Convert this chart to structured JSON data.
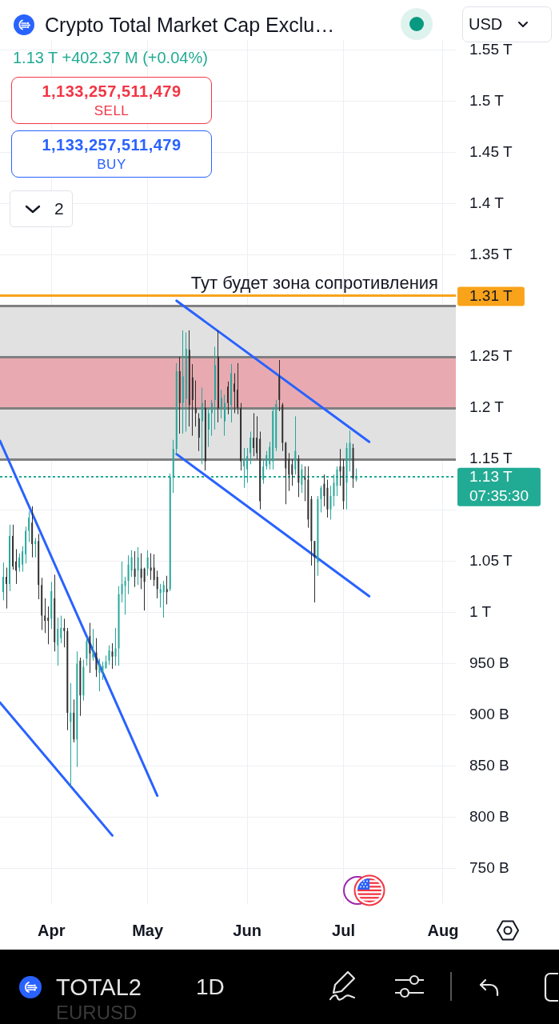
{
  "chart_data": {
    "type": "candlestick",
    "title": "Crypto Total Market Cap Exclu…",
    "subtitle": "1.13 T +402.37 M (+0.04%)",
    "x": [
      "--03-17",
      "--03-18",
      "--03-19",
      "--03-20",
      "--03-21",
      "--03-22",
      "--03-23",
      "--03-24",
      "--03-25",
      "--03-26",
      "--03-27",
      "--03-28",
      "--03-29",
      "--03-30",
      "--03-31",
      "--04-01",
      "--04-02",
      "--04-03",
      "--04-04",
      "--04-05",
      "--04-06",
      "--04-07",
      "--04-08",
      "--04-09",
      "--04-10",
      "--04-11",
      "--04-12",
      "--04-13",
      "--04-14",
      "--04-15",
      "--04-16",
      "--04-17",
      "--04-18",
      "--04-19",
      "--04-20",
      "--04-21",
      "--04-22",
      "--04-23",
      "--04-24",
      "--04-25",
      "--04-26",
      "--04-27",
      "--04-28",
      "--04-29",
      "--04-30",
      "--05-01",
      "--05-02",
      "--05-03",
      "--05-04",
      "--05-05",
      "--05-06",
      "--05-07",
      "--05-08",
      "--05-09",
      "--05-10",
      "--05-11",
      "--05-12",
      "--05-13",
      "--05-14",
      "--05-15",
      "--05-16",
      "--05-17",
      "--05-18",
      "--05-19",
      "--05-20",
      "--05-21",
      "--05-22",
      "--05-23",
      "--05-24",
      "--05-25",
      "--05-26",
      "--05-27",
      "--05-28",
      "--05-29",
      "--05-30",
      "--05-31",
      "--06-01",
      "--06-02",
      "--06-03",
      "--06-04",
      "--06-05",
      "--06-06",
      "--06-07",
      "--06-08",
      "--06-09",
      "--06-10",
      "--06-11",
      "--06-12",
      "--06-13",
      "--06-14",
      "--06-15",
      "--06-16",
      "--06-17",
      "--06-18",
      "--06-19",
      "--06-20",
      "--06-21",
      "--06-22",
      "--06-23",
      "--06-24",
      "--06-25",
      "--06-26",
      "--06-27",
      "--06-28",
      "--06-29",
      "--06-30",
      "--07-01",
      "--07-02",
      "--07-03",
      "--07-04",
      "--07-05"
    ],
    "ohlc": [
      [
        1020000000000.0,
        1049000000000.0,
        1012000000000.0,
        1035000000000.0
      ],
      [
        1035000000000.0,
        1044000000000.0,
        1004000000000.0,
        1028000000000.0
      ],
      [
        1028000000000.0,
        1086000000000.0,
        1021000000000.0,
        1075000000000.0
      ],
      [
        1075000000000.0,
        1086000000000.0,
        1042000000000.0,
        1045000000000.0
      ],
      [
        1050000000000.0,
        1062000000000.0,
        1028000000000.0,
        1041000000000.0
      ],
      [
        1044000000000.0,
        1058000000000.0,
        1040000000000.0,
        1054000000000.0
      ],
      [
        1047000000000.0,
        1065000000000.0,
        1040000000000.0,
        1060000000000.0
      ],
      [
        1057000000000.0,
        1084000000000.0,
        1048000000000.0,
        1080000000000.0
      ],
      [
        1080000000000.0,
        1099000000000.0,
        1069000000000.0,
        1093000000000.0
      ],
      [
        1088000000000.0,
        1104000000000.0,
        1054000000000.0,
        1067000000000.0
      ],
      [
        1067000000000.0,
        1073000000000.0,
        1054000000000.0,
        1070000000000.0
      ],
      [
        1070000000000.0,
        1077000000000.0,
        1013000000000.0,
        1027000000000.0
      ],
      [
        1027000000000.0,
        1034000000000.0,
        983000000000.0,
        997000000000.0
      ],
      [
        997000000000.0,
        1014000000000.0,
        980000000000.0,
        992000000000.0
      ],
      [
        995000000000.0,
        1006000000000.0,
        969000000000.0,
        992000000000.0
      ],
      [
        994000000000.0,
        1030000000000.0,
        984000000000.0,
        1021000000000.0
      ],
      [
        1014000000000.0,
        1037000000000.0,
        962000000000.0,
        971000000000.0
      ],
      [
        968000000000.0,
        995000000000.0,
        948000000000.0,
        984000000000.0
      ],
      [
        975000000000.0,
        997000000000.0,
        970000000000.0,
        985000000000.0
      ],
      [
        985000000000.0,
        994000000000.0,
        966000000000.0,
        982000000000.0
      ],
      [
        982000000000.0,
        985000000000.0,
        885000000000.0,
        902000000000.0
      ],
      [
        893000000000.0,
        931000000000.0,
        830000000000.0,
        902000000000.0
      ],
      [
        902000000000.0,
        915000000000.0,
        873000000000.0,
        876000000000.0
      ],
      [
        876000000000.0,
        962000000000.0,
        849000000000.0,
        950000000000.0
      ],
      [
        953000000000.0,
        956000000000.0,
        899000000000.0,
        919000000000.0
      ],
      [
        919000000000.0,
        954000000000.0,
        914000000000.0,
        947000000000.0
      ],
      [
        955000000000.0,
        976000000000.0,
        948000000000.0,
        972000000000.0
      ],
      [
        977000000000.0,
        990000000000.0,
        941000000000.0,
        960000000000.0
      ],
      [
        956000000000.0,
        984000000000.0,
        953000000000.0,
        961000000000.0
      ],
      [
        961000000000.0,
        975000000000.0,
        937000000000.0,
        944000000000.0
      ],
      [
        941000000000.0,
        955000000000.0,
        923000000000.0,
        950000000000.0
      ],
      [
        943000000000.0,
        952000000000.0,
        934000000000.0,
        948000000000.0
      ],
      [
        946000000000.0,
        958000000000.0,
        945000000000.0,
        952000000000.0
      ],
      [
        953000000000.0,
        968000000000.0,
        949000000000.0,
        963000000000.0
      ],
      [
        962000000000.0,
        970000000000.0,
        945000000000.0,
        957000000000.0
      ],
      [
        957000000000.0,
        985000000000.0,
        948000000000.0,
        965000000000.0
      ],
      [
        965000000000.0,
        1026000000000.0,
        948000000000.0,
        1018000000000.0
      ],
      [
        1018000000000.0,
        1050000000000.0,
        1010000000000.0,
        1028000000000.0
      ],
      [
        1026000000000.0,
        1035000000000.0,
        998000000000.0,
        1031000000000.0
      ],
      [
        1031000000000.0,
        1056000000000.0,
        1018000000000.0,
        1047000000000.0
      ],
      [
        1041000000000.0,
        1061000000000.0,
        1035000000000.0,
        1054000000000.0
      ],
      [
        1043000000000.0,
        1060000000000.0,
        1025000000000.0,
        1035000000000.0
      ],
      [
        1041000000000.0,
        1064000000000.0,
        1027000000000.0,
        1054000000000.0
      ],
      [
        1043000000000.0,
        1058000000000.0,
        1023000000000.0,
        1034000000000.0
      ],
      [
        1043000000000.0,
        1044000000000.0,
        1002000000000.0,
        1030000000000.0
      ],
      [
        1043000000000.0,
        1061000000000.0,
        1036000000000.0,
        1054000000000.0
      ],
      [
        1044000000000.0,
        1058000000000.0,
        1032000000000.0,
        1041000000000.0
      ],
      [
        1044000000000.0,
        1057000000000.0,
        1026000000000.0,
        1032000000000.0
      ],
      [
        1035000000000.0,
        1041000000000.0,
        1014000000000.0,
        1023000000000.0
      ],
      [
        1019000000000.0,
        1028000000000.0,
        1005000000000.0,
        1023000000000.0
      ],
      [
        1020000000000.0,
        1031000000000.0,
        995000000000.0,
        1027000000000.0
      ],
      [
        1023000000000.0,
        1036000000000.0,
        1008000000000.0,
        1020000000000.0
      ],
      [
        1023000000000.0,
        1136000000000.0,
        1021000000000.0,
        1133000000000.0
      ],
      [
        1132000000000.0,
        1169000000000.0,
        1117000000000.0,
        1160000000000.0
      ],
      [
        1160000000000.0,
        1244000000000.0,
        1155000000000.0,
        1236000000000.0
      ],
      [
        1236000000000.0,
        1250000000000.0,
        1175000000000.0,
        1205000000000.0
      ],
      [
        1205000000000.0,
        1276000000000.0,
        1175000000000.0,
        1231000000000.0
      ],
      [
        1209000000000.0,
        1274000000000.0,
        1177000000000.0,
        1258000000000.0
      ],
      [
        1257000000000.0,
        1276000000000.0,
        1182000000000.0,
        1203000000000.0
      ],
      [
        1230000000000.0,
        1243000000000.0,
        1173000000000.0,
        1208000000000.0
      ],
      [
        1200000000000.0,
        1227000000000.0,
        1182000000000.0,
        1195000000000.0
      ],
      [
        1190000000000.0,
        1195000000000.0,
        1158000000000.0,
        1171000000000.0
      ],
      [
        1187000000000.0,
        1220000000000.0,
        1145000000000.0,
        1205000000000.0
      ],
      [
        1200000000000.0,
        1208000000000.0,
        1139000000000.0,
        1148000000000.0
      ],
      [
        1179000000000.0,
        1200000000000.0,
        1162000000000.0,
        1195000000000.0
      ],
      [
        1195000000000.0,
        1208000000000.0,
        1173000000000.0,
        1205000000000.0
      ],
      [
        1208000000000.0,
        1260000000000.0,
        1179000000000.0,
        1242000000000.0
      ],
      [
        1250000000000.0,
        1276000000000.0,
        1186000000000.0,
        1200000000000.0
      ],
      [
        1200000000000.0,
        1218000000000.0,
        1190000000000.0,
        1210000000000.0
      ],
      [
        1187000000000.0,
        1213000000000.0,
        1173000000000.0,
        1205000000000.0
      ],
      [
        1221000000000.0,
        1226000000000.0,
        1194000000000.0,
        1205000000000.0
      ],
      [
        1203000000000.0,
        1243000000000.0,
        1186000000000.0,
        1234000000000.0
      ],
      [
        1224000000000.0,
        1234000000000.0,
        1195000000000.0,
        1216000000000.0
      ],
      [
        1218000000000.0,
        1244000000000.0,
        1194000000000.0,
        1200000000000.0
      ],
      [
        1200000000000.0,
        1205000000000.0,
        1139000000000.0,
        1148000000000.0
      ],
      [
        1143000000000.0,
        1161000000000.0,
        1122000000000.0,
        1150000000000.0
      ],
      [
        1140000000000.0,
        1161000000000.0,
        1127000000000.0,
        1153000000000.0
      ],
      [
        1156000000000.0,
        1177000000000.0,
        1145000000000.0,
        1171000000000.0
      ],
      [
        1171000000000.0,
        1195000000000.0,
        1153000000000.0,
        1161000000000.0
      ],
      [
        1171000000000.0,
        1192000000000.0,
        1150000000000.0,
        1156000000000.0
      ],
      [
        1170000000000.0,
        1177000000000.0,
        1101000000000.0,
        1109000000000.0
      ],
      [
        1130000000000.0,
        1150000000000.0,
        1126000000000.0,
        1143000000000.0
      ],
      [
        1143000000000.0,
        1158000000000.0,
        1140000000000.0,
        1154000000000.0
      ],
      [
        1145000000000.0,
        1167000000000.0,
        1140000000000.0,
        1162000000000.0
      ],
      [
        1148000000000.0,
        1201000000000.0,
        1140000000000.0,
        1197000000000.0
      ],
      [
        1161000000000.0,
        1208000000000.0,
        1158000000000.0,
        1204000000000.0
      ],
      [
        1231000000000.0,
        1247000000000.0,
        1197000000000.0,
        1208000000000.0
      ],
      [
        1203000000000.0,
        1205000000000.0,
        1158000000000.0,
        1166000000000.0
      ],
      [
        1166000000000.0,
        1167000000000.0,
        1106000000000.0,
        1141000000000.0
      ],
      [
        1150000000000.0,
        1156000000000.0,
        1119000000000.0,
        1135000000000.0
      ],
      [
        1145000000000.0,
        1150000000000.0,
        1124000000000.0,
        1135000000000.0
      ],
      [
        1140000000000.0,
        1192000000000.0,
        1135000000000.0,
        1158000000000.0
      ],
      [
        1150000000000.0,
        1154000000000.0,
        1113000000000.0,
        1127000000000.0
      ],
      [
        1125000000000.0,
        1145000000000.0,
        1117000000000.0,
        1140000000000.0
      ],
      [
        1132000000000.0,
        1143000000000.0,
        1109000000000.0,
        1130000000000.0
      ],
      [
        1130000000000.0,
        1143000000000.0,
        1083000000000.0,
        1091000000000.0
      ],
      [
        1111000000000.0,
        1114000000000.0,
        1046000000000.0,
        1070000000000.0
      ],
      [
        1070000000000.0,
        1070000000000.0,
        1010000000000.0,
        1054000000000.0
      ],
      [
        1049000000000.0,
        1114000000000.0,
        1036000000000.0,
        1111000000000.0
      ],
      [
        1111000000000.0,
        1124000000000.0,
        1098000000000.0,
        1122000000000.0
      ],
      [
        1126000000000.0,
        1135000000000.0,
        1104000000000.0,
        1114000000000.0
      ],
      [
        1122000000000.0,
        1130000000000.0,
        1093000000000.0,
        1101000000000.0
      ],
      [
        1101000000000.0,
        1124000000000.0,
        1091000000000.0,
        1114000000000.0
      ],
      [
        1114000000000.0,
        1135000000000.0,
        1104000000000.0,
        1127000000000.0
      ],
      [
        1124000000000.0,
        1143000000000.0,
        1114000000000.0,
        1140000000000.0
      ],
      [
        1143000000000.0,
        1160000000000.0,
        1124000000000.0,
        1138000000000.0
      ],
      [
        1143000000000.0,
        1150000000000.0,
        1101000000000.0,
        1109000000000.0
      ],
      [
        1127000000000.0,
        1166000000000.0,
        1101000000000.0,
        1161000000000.0
      ],
      [
        1150000000000.0,
        1178000000000.0,
        1138000000000.0,
        1166000000000.0
      ],
      [
        1161000000000.0,
        1165000000000.0,
        1122000000000.0,
        1131000000000.0
      ],
      [
        1130000000000.0,
        1141000000000.0,
        1128000000000.0,
        1133000000000.0
      ]
    ],
    "colors": [
      "#26a69a",
      "#2e2e2e",
      "#26a69a",
      "#2e2e2e",
      "#2e2e2e",
      "#26a69a",
      "#26a69a",
      "#26a69a",
      "#26a69a",
      "#2e2e2e",
      "#26a69a",
      "#2e2e2e",
      "#2e2e2e",
      "#2e2e2e",
      "#2e2e2e",
      "#26a69a",
      "#2e2e2e",
      "#26a69a",
      "#26a69a",
      "#2e2e2e",
      "#2e2e2e",
      "#26a69a",
      "#2e2e2e",
      "#26a69a",
      "#2e2e2e",
      "#26a69a",
      "#26a69a",
      "#2e2e2e",
      "#26a69a",
      "#2e2e2e",
      "#26a69a",
      "#26a69a",
      "#26a69a",
      "#26a69a",
      "#2e2e2e",
      "#26a69a",
      "#26a69a",
      "#26a69a",
      "#26a69a",
      "#26a69a",
      "#26a69a",
      "#2e2e2e",
      "#26a69a",
      "#2e2e2e",
      "#2e2e2e",
      "#26a69a",
      "#2e2e2e",
      "#2e2e2e",
      "#2e2e2e",
      "#26a69a",
      "#26a69a",
      "#2e2e2e",
      "#26a69a",
      "#26a69a",
      "#26a69a",
      "#2e2e2e",
      "#26a69a",
      "#26a69a",
      "#2e2e2e",
      "#2e2e2e",
      "#2e2e2e",
      "#2e2e2e",
      "#26a69a",
      "#2e2e2e",
      "#26a69a",
      "#26a69a",
      "#26a69a",
      "#2e2e2e",
      "#26a69a",
      "#26a69a",
      "#2e2e2e",
      "#26a69a",
      "#2e2e2e",
      "#2e2e2e",
      "#2e2e2e",
      "#26a69a",
      "#26a69a",
      "#26a69a",
      "#2e2e2e",
      "#2e2e2e",
      "#2e2e2e",
      "#26a69a",
      "#26a69a",
      "#26a69a",
      "#26a69a",
      "#26a69a",
      "#2e2e2e",
      "#2e2e2e",
      "#2e2e2e",
      "#2e2e2e",
      "#2e2e2e",
      "#26a69a",
      "#2e2e2e",
      "#26a69a",
      "#2e2e2e",
      "#2e2e2e",
      "#2e2e2e",
      "#2e2e2e",
      "#26a69a",
      "#26a69a",
      "#2e2e2e",
      "#2e2e2e",
      "#26a69a",
      "#26a69a",
      "#26a69a",
      "#2e2e2e",
      "#2e2e2e",
      "#26a69a",
      "#26a69a",
      "#2e2e2e",
      "#26a69a"
    ],
    "series": [
      {
        "type": "line",
        "x": [
          "--03-16",
          "--05-04"
        ],
        "values": [
          1168000000000.0,
          821000000000.0
        ],
        "color": "#2962ff"
      },
      {
        "type": "line",
        "x": [
          "--03-16",
          "--04-20"
        ],
        "values": [
          912000000000.0,
          782000000000.0
        ],
        "color": "#2962ff"
      },
      {
        "type": "line",
        "x": [
          "--05-10",
          "--07-09"
        ],
        "values": [
          1305000000000.0,
          1167000000000.0
        ],
        "color": "#2962ff"
      },
      {
        "type": "line",
        "x": [
          "--05-10",
          "--07-09"
        ],
        "values": [
          1155000000000.0,
          1016000000000.0
        ],
        "color": "#2962ff"
      }
    ],
    "xlim": [
      "--03-16",
      "--08-05"
    ],
    "xticks": [
      {
        "value": "--04-01",
        "label": "Apr"
      },
      {
        "value": "--05-01",
        "label": "May"
      },
      {
        "value": "--06-01",
        "label": "Jun"
      },
      {
        "value": "--07-01",
        "label": "Jul"
      },
      {
        "value": "--08-01",
        "label": "Aug"
      }
    ],
    "ylim": [
      715000000000.0,
      1560000000000.0
    ],
    "yticks": [
      {
        "value": 750000000000.0,
        "label": "750 B"
      },
      {
        "value": 800000000000.0,
        "label": "800 B"
      },
      {
        "value": 850000000000.0,
        "label": "850 B"
      },
      {
        "value": 900000000000.0,
        "label": "900 B"
      },
      {
        "value": 950000000000.0,
        "label": "950 B"
      },
      {
        "value": 1000000000000.0,
        "label": "1 T"
      },
      {
        "value": 1050000000000.0,
        "label": "1.05 T"
      },
      {
        "value": 1100000000000.0,
        "label": null
      },
      {
        "value": 1150000000000.0,
        "label": "1.15 T"
      },
      {
        "value": 1200000000000.0,
        "label": "1.2 T"
      },
      {
        "value": 1250000000000.0,
        "label": "1.25 T"
      },
      {
        "value": 1300000000000.0,
        "label": null
      },
      {
        "value": 1350000000000.0,
        "label": "1.35 T"
      },
      {
        "value": 1400000000000.0,
        "label": "1.4 T"
      },
      {
        "value": 1450000000000.0,
        "label": "1.45 T"
      },
      {
        "value": 1500000000000.0,
        "label": "1.5 T"
      },
      {
        "value": 1550000000000.0,
        "label": "1.55 T"
      }
    ],
    "grid": true,
    "bands": [
      {
        "axis": "y",
        "from": 1200000000000.0,
        "to": 1250000000000.0,
        "color": "#e8aab0"
      },
      {
        "axis": "y",
        "from": 1150000000000.0,
        "to": 1200000000000.0,
        "color": "#e1e1e1"
      },
      {
        "axis": "y",
        "from": 1250000000000.0,
        "to": 1300000000000.0,
        "color": "#e1e1e1"
      }
    ],
    "ref_lines": [
      {
        "axis": "y",
        "value": 1310000000000.0,
        "label": "1.31 T",
        "color": "#f9a31b"
      },
      {
        "axis": "y",
        "value": 1133000000000.0,
        "label": "1.13 T\n07:35:30",
        "color": "#22ab94",
        "line_style": "dotted"
      }
    ],
    "annotations": [
      {
        "text": "Тут будет зона сопротивления",
        "x": "--06-22",
        "y": 1310000000000.0
      },
      "USD",
      "1,133,257,511,479",
      "SELL",
      "1,133,257,511,479",
      "BUY",
      "2",
      "TOTAL2",
      "1D",
      "EURUSD"
    ]
  }
}
